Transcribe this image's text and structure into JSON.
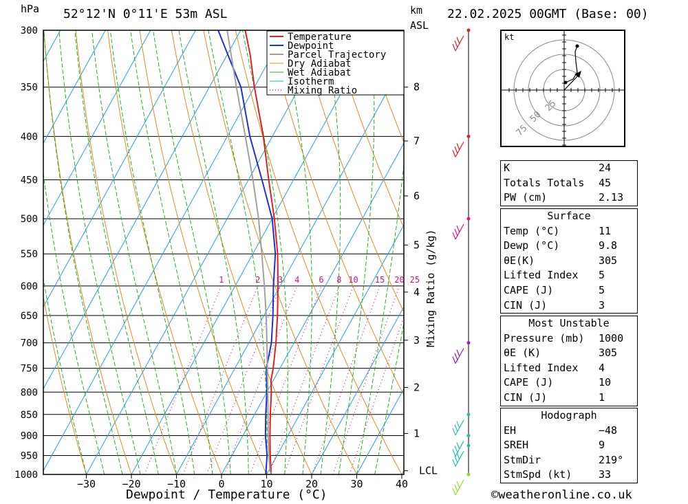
{
  "header": {
    "location": "52°12'N  0°11'E  53m  ASL",
    "datetime": "22.02.2025  00GMT  (Base: 00)",
    "unit_pressure": "hPa",
    "unit_km": "km",
    "unit_asl": "ASL",
    "xaxis_label": "Dewpoint / Temperature (°C)",
    "mixing_label": "Mixing Ratio (g/kg)",
    "credit": "©weatheronline.co.uk"
  },
  "chart_data": {
    "type": "line",
    "title": "Skew-T log-P sounding",
    "xlabel": "Dewpoint / Temperature (°C)",
    "ylabel": "hPa",
    "xlim": [
      -40,
      40
    ],
    "ylim": [
      1000,
      300
    ],
    "pressure_levels": [
      300,
      350,
      400,
      450,
      500,
      550,
      600,
      650,
      700,
      750,
      800,
      850,
      900,
      950,
      1000
    ],
    "pressure_labels": [
      "300",
      "350",
      "400",
      "450",
      "500",
      "550",
      "600",
      "650",
      "700",
      "750",
      "800",
      "850",
      "900",
      "950",
      "1000"
    ],
    "temp_ticks": [
      -30,
      -20,
      -10,
      0,
      10,
      20,
      30,
      40
    ],
    "temp_tick_labels": [
      "−30",
      "−20",
      "−10",
      "0",
      "10",
      "20",
      "30",
      "40"
    ],
    "km_ticks": [
      {
        "label": "8",
        "p": 350
      },
      {
        "label": "7",
        "p": 405
      },
      {
        "label": "6",
        "p": 470
      },
      {
        "label": "5",
        "p": 537
      },
      {
        "label": "4",
        "p": 610
      },
      {
        "label": "3",
        "p": 695
      },
      {
        "label": "2",
        "p": 790
      },
      {
        "label": "1",
        "p": 895
      },
      {
        "label": "LCL",
        "p": 990
      }
    ],
    "mixing_ratio_labels": [
      "1",
      "2",
      "3",
      "4",
      "6",
      "8",
      "10",
      "15",
      "20",
      "25"
    ],
    "mixing_ratio_values": [
      1,
      2,
      3,
      4,
      6,
      8,
      10,
      15,
      20,
      25
    ],
    "legend": [
      "Temperature",
      "Dewpoint",
      "Parcel Trajectory",
      "Dry Adiabat",
      "Wet Adiabat",
      "Isotherm",
      "Mixing Ratio"
    ],
    "series": [
      {
        "name": "Temperature",
        "color": "#e02020",
        "points": [
          [
            1000,
            11
          ],
          [
            950,
            8.5
          ],
          [
            900,
            6
          ],
          [
            850,
            3.5
          ],
          [
            800,
            1
          ],
          [
            775,
            -0.5
          ],
          [
            750,
            -1.5
          ],
          [
            700,
            -4
          ],
          [
            650,
            -7
          ],
          [
            600,
            -10.5
          ],
          [
            550,
            -14.5
          ],
          [
            500,
            -19.5
          ],
          [
            450,
            -25.5
          ],
          [
            400,
            -32
          ],
          [
            350,
            -40
          ],
          [
            320,
            -45
          ],
          [
            300,
            -49
          ]
        ]
      },
      {
        "name": "Dewpoint",
        "color": "#2030d0",
        "points": [
          [
            1000,
            9.8
          ],
          [
            950,
            7.8
          ],
          [
            900,
            5
          ],
          [
            850,
            2.5
          ],
          [
            800,
            0
          ],
          [
            750,
            -3
          ],
          [
            700,
            -5
          ],
          [
            650,
            -8
          ],
          [
            600,
            -11.5
          ],
          [
            550,
            -15
          ],
          [
            500,
            -20
          ],
          [
            450,
            -27
          ],
          [
            400,
            -35
          ],
          [
            350,
            -43
          ],
          [
            320,
            -50
          ],
          [
            300,
            -55
          ]
        ]
      },
      {
        "name": "Parcel Trajectory",
        "color": "#a0a0a0",
        "points": [
          [
            1000,
            11
          ],
          [
            990,
            10.3
          ],
          [
            950,
            8.2
          ],
          [
            900,
            5.6
          ],
          [
            850,
            3
          ],
          [
            800,
            0.2
          ],
          [
            750,
            -2.8
          ],
          [
            700,
            -6
          ],
          [
            650,
            -9.5
          ],
          [
            600,
            -13.5
          ],
          [
            550,
            -18
          ],
          [
            500,
            -23
          ],
          [
            450,
            -29
          ],
          [
            400,
            -36
          ],
          [
            350,
            -44
          ],
          [
            300,
            -53
          ]
        ]
      }
    ]
  },
  "winds": [
    {
      "p": 300,
      "color": "#e02020"
    },
    {
      "p": 400,
      "color": "#e02020"
    },
    {
      "p": 500,
      "color": "#e0107a"
    },
    {
      "p": 700,
      "color": "#9020c0"
    },
    {
      "p": 850,
      "color": "#20c0b0"
    },
    {
      "p": 900,
      "color": "#20c0b0"
    },
    {
      "p": 925,
      "color": "#20c0b0"
    },
    {
      "p": 1000,
      "color": "#90e020"
    }
  ],
  "hodograph": {
    "unit": "kt",
    "ring_labels": [
      "25",
      "50",
      "75"
    ]
  },
  "indices": {
    "rows": [
      {
        "label": "K",
        "value": "24"
      },
      {
        "label": "Totals Totals",
        "value": "45"
      },
      {
        "label": "PW (cm)",
        "value": "2.13"
      }
    ]
  },
  "surface": {
    "title": "Surface",
    "rows": [
      {
        "label": "Temp (°C)",
        "value": "11"
      },
      {
        "label": "Dewp (°C)",
        "value": "9.8"
      },
      {
        "label": "θE(K)",
        "value": "305"
      },
      {
        "label": "Lifted Index",
        "value": "5"
      },
      {
        "label": "CAPE (J)",
        "value": "5"
      },
      {
        "label": "CIN (J)",
        "value": "3"
      }
    ]
  },
  "most_unstable": {
    "title": "Most Unstable",
    "rows": [
      {
        "label": "Pressure (mb)",
        "value": "1000"
      },
      {
        "label": "θE (K)",
        "value": "305"
      },
      {
        "label": "Lifted Index",
        "value": "4"
      },
      {
        "label": "CAPE (J)",
        "value": "10"
      },
      {
        "label": "CIN (J)",
        "value": "1"
      }
    ]
  },
  "hodograph_stats": {
    "title": "Hodograph",
    "rows": [
      {
        "label": "EH",
        "value": "−48"
      },
      {
        "label": "SREH",
        "value": "9"
      },
      {
        "label": "StmDir",
        "value": "219°"
      },
      {
        "label": "StmSpd (kt)",
        "value": "33"
      }
    ]
  },
  "colors": {
    "temperature": "#e02020",
    "dewpoint": "#2030d0",
    "parcel": "#a0a0a0",
    "dry_adiabat": "#e08a20",
    "wet_adiabat": "#20b020",
    "isotherm": "#20a0e0",
    "mixing_ratio": "#d0107a"
  }
}
